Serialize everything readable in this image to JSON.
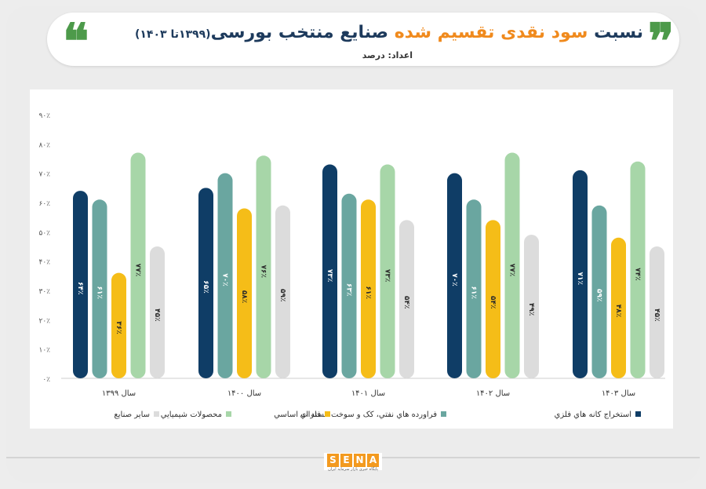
{
  "header": {
    "title_part1": "نسبت",
    "title_part2": "سود نقدی",
    "title_part3": "تقسیم شده",
    "title_part4": "صنایع منتخب بورسی",
    "title_years": "(۱۳۹۹تا ۱۴۰۳)",
    "subtitle": "اعداد: درصد",
    "quote_open": "❞",
    "quote_close": "❝",
    "accent_color": "#f08a1d",
    "title_color": "#1d3a5c"
  },
  "chart_data": {
    "type": "bar",
    "categories": [
      "سال ۱۳۹۹",
      "سال ۱۴۰۰",
      "سال ۱۴۰۱",
      "سال ۱۴۰۲",
      "سال ۱۴۰۳"
    ],
    "y_tick_labels": [
      "۰٪",
      "۱۰٪",
      "۲۰٪",
      "۳۰٪",
      "۴۰٪",
      "۵۰٪",
      "۶۰٪",
      "۷۰٪",
      "۸۰٪",
      "۹۰٪"
    ],
    "ylim": [
      0,
      90
    ],
    "grid": false,
    "legend_position": "bottom",
    "series": [
      {
        "name": "استخراج کانه هاي فلزي",
        "color": "#0f3d66",
        "values": [
          64,
          65,
          73,
          70,
          71
        ],
        "labels": [
          "۶۴٪",
          "۶۵٪",
          "۷۳٪",
          "۷۰٪",
          "۷۱٪"
        ]
      },
      {
        "name": "فراورده هاي نفتي، کک و سوخت هسته اي",
        "color": "#6aa6a0",
        "values": [
          61,
          70,
          63,
          61,
          59
        ],
        "labels": [
          "۶۱٪",
          "۷۰٪",
          "۶۳٪",
          "۶۱٪",
          "۵۹٪"
        ]
      },
      {
        "name": "فلزات اساسي",
        "color": "#f5bd18",
        "values": [
          36,
          58,
          61,
          54,
          48
        ],
        "labels": [
          "۳۶٪",
          "۵۸٪",
          "۶۱٪",
          "۵۴٪",
          "۴۸٪"
        ]
      },
      {
        "name": "محصولات شيميايي",
        "color": "#a7d6a8",
        "values": [
          77,
          76,
          73,
          77,
          74
        ],
        "labels": [
          "۷۷٪",
          "۷۶٪",
          "۷۳٪",
          "۷۷٪",
          "۷۴٪"
        ]
      },
      {
        "name": "ساير صنايع",
        "color": "#dcdcdc",
        "values": [
          45,
          59,
          54,
          49,
          45
        ],
        "labels": [
          "۴۵٪",
          "۵۹٪",
          "۵۴٪",
          "۴۹٪",
          "۴۵٪"
        ]
      }
    ]
  },
  "footer": {
    "logo_letters": [
      "S",
      "E",
      "N",
      "A"
    ],
    "logo_color": "#f39a1f",
    "logo_tagline": "پایگاه خبری بازار سرمایه ایران"
  }
}
